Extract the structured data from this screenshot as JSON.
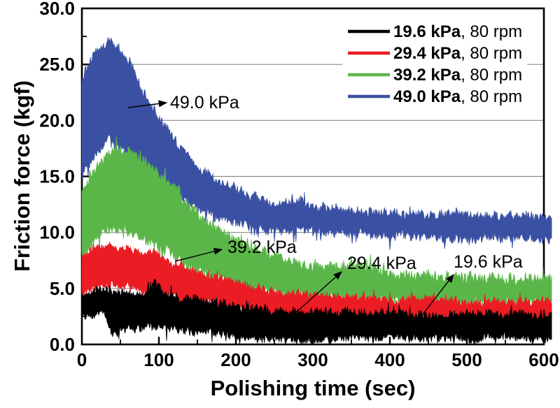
{
  "figure": {
    "xlabel": "Polishing time (sec)",
    "ylabel": "Friction force (kgf)"
  },
  "chart_data": {
    "type": "line",
    "xlabel": "Polishing time (sec)",
    "ylabel": "Friction force (kgf)",
    "xlim": [
      0,
      600
    ],
    "ylim": [
      0,
      30
    ],
    "x_ticks": [
      0,
      100,
      200,
      300,
      400,
      500,
      600
    ],
    "x_tick_labels": [
      "0",
      "100",
      "200",
      "300",
      "400",
      "500",
      "600"
    ],
    "x_minor_ticks": [
      50,
      150,
      250,
      350,
      450,
      550
    ],
    "y_ticks": [
      0,
      5,
      10,
      15,
      20,
      25,
      30
    ],
    "y_tick_labels": [
      "0.0",
      "5.0",
      "10.0",
      "15.0",
      "20.0",
      "25.0",
      "30.0"
    ],
    "y_minor_ticks": [
      2.5,
      7.5,
      12.5,
      17.5,
      22.5,
      27.5
    ],
    "grid": {
      "values": [
        5,
        10,
        15,
        20,
        25
      ],
      "color": "#8a8a8a",
      "on": true
    },
    "legend": {
      "position": "top-right"
    },
    "draw_order": [
      "49.0 kPa",
      "39.2 kPa",
      "29.4 kPa",
      "19.6 kPa"
    ],
    "series": [
      {
        "name": "19.6 kPa",
        "pressure_kpa": 19.6,
        "rpm": 80,
        "legend_bold": "19.6 kPa",
        "legend_rest": ", 80 rpm",
        "color": "#000000",
        "noise_amp": 0.33,
        "seed": 11,
        "annotation": {
          "text": "19.6 kPa",
          "text_x": 648,
          "text_y": 383,
          "arrow_tail": [
            597,
            459
          ],
          "arrow_head": [
            648,
            393
          ]
        },
        "envelope": {
          "t": [
            0,
            15,
            30,
            38,
            45,
            60,
            80,
            93,
            100,
            110,
            130,
            160,
            200,
            240,
            270,
            300,
            350,
            400,
            450,
            500,
            550,
            600
          ],
          "upper": [
            4.3,
            4.8,
            5.0,
            4.9,
            4.6,
            4.7,
            4.6,
            5.6,
            5.2,
            4.5,
            4.2,
            3.9,
            3.5,
            3.1,
            2.9,
            2.9,
            2.8,
            2.8,
            2.7,
            2.7,
            2.7,
            2.6
          ],
          "lower": [
            2.5,
            2.6,
            2.7,
            1.0,
            1.1,
            1.3,
            1.5,
            1.6,
            1.5,
            1.5,
            1.3,
            1.1,
            0.8,
            0.5,
            0.4,
            0.4,
            0.6,
            0.7,
            0.6,
            0.5,
            0.6,
            0.5
          ]
        }
      },
      {
        "name": "29.4 kPa",
        "pressure_kpa": 29.4,
        "rpm": 80,
        "legend_bold": "29.4 kPa",
        "legend_rest": ", 80 rpm",
        "color": "#eb1c24",
        "noise_amp": 0.3,
        "seed": 22,
        "annotation": {
          "text": "29.4 kPa",
          "text_x": 496,
          "text_y": 385,
          "arrow_tail": [
            423,
            447
          ],
          "arrow_head": [
            488,
            389
          ]
        },
        "envelope": {
          "t": [
            0,
            20,
            40,
            60,
            80,
            95,
            110,
            130,
            150,
            175,
            200,
            230,
            260,
            300,
            350,
            400,
            450,
            500,
            550,
            600
          ],
          "upper": [
            7.8,
            8.8,
            8.7,
            8.5,
            8.2,
            8.3,
            7.4,
            6.8,
            6.3,
            5.9,
            5.5,
            5.0,
            4.6,
            4.4,
            4.3,
            4.1,
            4.0,
            3.9,
            3.8,
            3.8
          ],
          "lower": [
            4.3,
            5.3,
            5.2,
            5.1,
            4.8,
            4.8,
            4.4,
            4.1,
            3.8,
            3.4,
            3.1,
            2.7,
            2.4,
            2.3,
            2.3,
            2.3,
            2.2,
            2.2,
            2.2,
            2.2
          ]
        }
      },
      {
        "name": "39.2 kPa",
        "pressure_kpa": 39.2,
        "rpm": 80,
        "legend_bold": "39.2 kPa",
        "legend_rest": ", 80 rpm",
        "color": "#5bb649",
        "noise_amp": 0.45,
        "seed": 33,
        "annotation": {
          "text": "39.2 kPa",
          "text_x": 325,
          "text_y": 362,
          "arrow_tail": [
            250,
            374
          ],
          "arrow_head": [
            317,
            357
          ]
        },
        "envelope": {
          "t": [
            0,
            20,
            40,
            60,
            80,
            100,
            120,
            140,
            160,
            180,
            200,
            230,
            260,
            300,
            340,
            360,
            400,
            450,
            500,
            550,
            600
          ],
          "upper": [
            13.5,
            16.0,
            17.4,
            17.0,
            16.6,
            15.3,
            14.0,
            12.2,
            10.8,
            10.0,
            9.4,
            8.4,
            7.8,
            7.0,
            6.9,
            7.2,
            6.4,
            6.1,
            5.9,
            5.8,
            5.8
          ],
          "lower": [
            7.8,
            9.8,
            10.4,
            10.2,
            9.6,
            8.8,
            7.9,
            7.0,
            6.3,
            5.8,
            5.3,
            4.7,
            4.4,
            4.1,
            4.0,
            4.0,
            3.9,
            3.8,
            3.7,
            3.7,
            3.7
          ]
        }
      },
      {
        "name": "49.0 kPa",
        "pressure_kpa": 49.0,
        "rpm": 80,
        "legend_bold": "49.0 kPa",
        "legend_rest": ", 80 rpm",
        "color": "#3a51a3",
        "noise_amp": 0.38,
        "seed": 44,
        "annotation": {
          "text": "49.0 kPa",
          "text_x": 243,
          "text_y": 155,
          "arrow_tail": [
            183,
            154
          ],
          "arrow_head": [
            238,
            147
          ]
        },
        "envelope": {
          "t": [
            0,
            15,
            35,
            55,
            75,
            95,
            115,
            135,
            155,
            175,
            200,
            230,
            260,
            285,
            310,
            350,
            400,
            450,
            500,
            550,
            600
          ],
          "upper": [
            23.5,
            25.8,
            27.2,
            25.6,
            23.2,
            20.8,
            18.8,
            17.0,
            15.6,
            14.7,
            13.8,
            13.0,
            12.5,
            12.7,
            12.2,
            11.9,
            11.7,
            11.6,
            11.5,
            11.5,
            11.4
          ],
          "lower": [
            15.5,
            16.5,
            18.5,
            17.2,
            16.0,
            15.0,
            13.8,
            12.7,
            12.0,
            11.4,
            10.9,
            10.4,
            10.1,
            10.2,
            10.0,
            9.9,
            9.7,
            9.6,
            9.5,
            9.5,
            9.4
          ]
        }
      }
    ]
  }
}
